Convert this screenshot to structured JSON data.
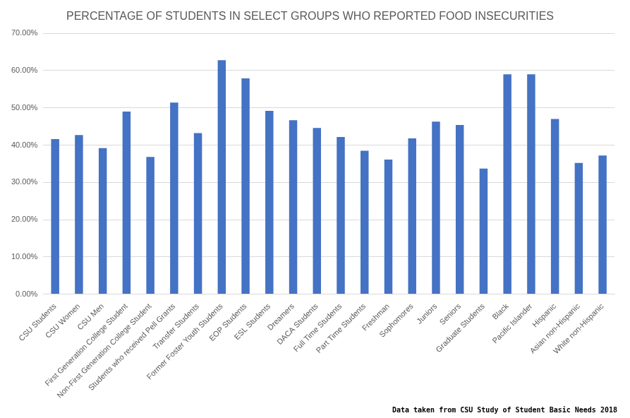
{
  "chart_data": {
    "type": "bar",
    "title": "PERCENTAGE OF STUDENTS IN SELECT GROUPS WHO REPORTED FOOD INSECURITIES",
    "annotation": "Data taken from CSU Study of Student Basic Needs 2018",
    "categories": [
      "CSU Students",
      "CSU Women",
      "CSU Men",
      "First Generation College Student",
      "Non-First Generation College Student",
      "Students who received Pell Grants",
      "Transfer Students",
      "Former Foster Youth Students",
      "EOP Students",
      "ESL Students",
      "Dreamers",
      "DACA Students",
      "Full Time Students",
      "Part Time Students",
      "Freshman",
      "Sophomores",
      "Juniors",
      "Seniors",
      "Graduate Students",
      "Black",
      "Pacific Islander",
      "Hispanic",
      "Asian non-Hispanic",
      "White non-Hispanic"
    ],
    "values": [
      41.6,
      42.7,
      39.2,
      49.0,
      36.8,
      51.4,
      43.2,
      62.8,
      57.9,
      49.2,
      46.7,
      44.6,
      42.2,
      38.5,
      36.1,
      41.8,
      46.3,
      45.4,
      33.7,
      59.0,
      59.0,
      47.0,
      35.2,
      37.2
    ],
    "color": "#4472c4",
    "ylim": [
      0,
      70
    ],
    "yticks": [
      {
        "value": 0,
        "label": "0.00%"
      },
      {
        "value": 10,
        "label": "10.00%"
      },
      {
        "value": 20,
        "label": "20.00%"
      },
      {
        "value": 30,
        "label": "30.00%"
      },
      {
        "value": 40,
        "label": "40.00%"
      },
      {
        "value": 50,
        "label": "50.00%"
      },
      {
        "value": 60,
        "label": "60.00%"
      },
      {
        "value": 70,
        "label": "70.00%"
      }
    ],
    "grid": true,
    "data_labels": false
  }
}
